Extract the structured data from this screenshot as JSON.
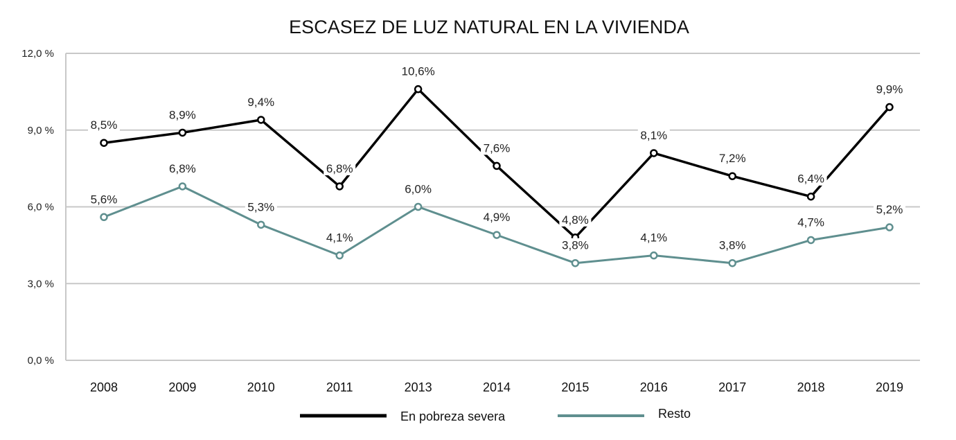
{
  "chart_data": {
    "type": "line",
    "title": "ESCASEZ DE LUZ NATURAL EN LA VIVIENDA",
    "xlabel": "",
    "ylabel": "",
    "categories": [
      "2008",
      "2009",
      "2010",
      "2011",
      "2013",
      "2014",
      "2015",
      "2016",
      "2017",
      "2018",
      "2019"
    ],
    "ylim": [
      0,
      12
    ],
    "yticks": [
      0,
      3,
      6,
      9,
      12
    ],
    "ytick_labels": [
      "0,0 %",
      "3,0 %",
      "6,0 %",
      "9,0 %",
      "12,0 %"
    ],
    "grid": true,
    "legend_position": "bottom",
    "series": [
      {
        "name": "En pobreza severa",
        "color": "#000000",
        "values": [
          8.5,
          8.9,
          9.4,
          6.8,
          10.6,
          7.6,
          4.8,
          8.1,
          7.2,
          6.4,
          9.9
        ],
        "labels": [
          "8,5%",
          "8,9%",
          "9,4%",
          "6,8%",
          "10,6%",
          "7,6%",
          "4,8%",
          "8,1%",
          "7,2%",
          "6,4%",
          "9,9%"
        ]
      },
      {
        "name": "Resto",
        "color": "#5f8f8f",
        "values": [
          5.6,
          6.8,
          5.3,
          4.1,
          6.0,
          4.9,
          3.8,
          4.1,
          3.8,
          4.7,
          5.2
        ],
        "labels": [
          "5,6%",
          "6,8%",
          "5,3%",
          "4,1%",
          "6,0%",
          "4,9%",
          "3,8%",
          "4,1%",
          "3,8%",
          "4,7%",
          "5,2%"
        ]
      }
    ]
  }
}
